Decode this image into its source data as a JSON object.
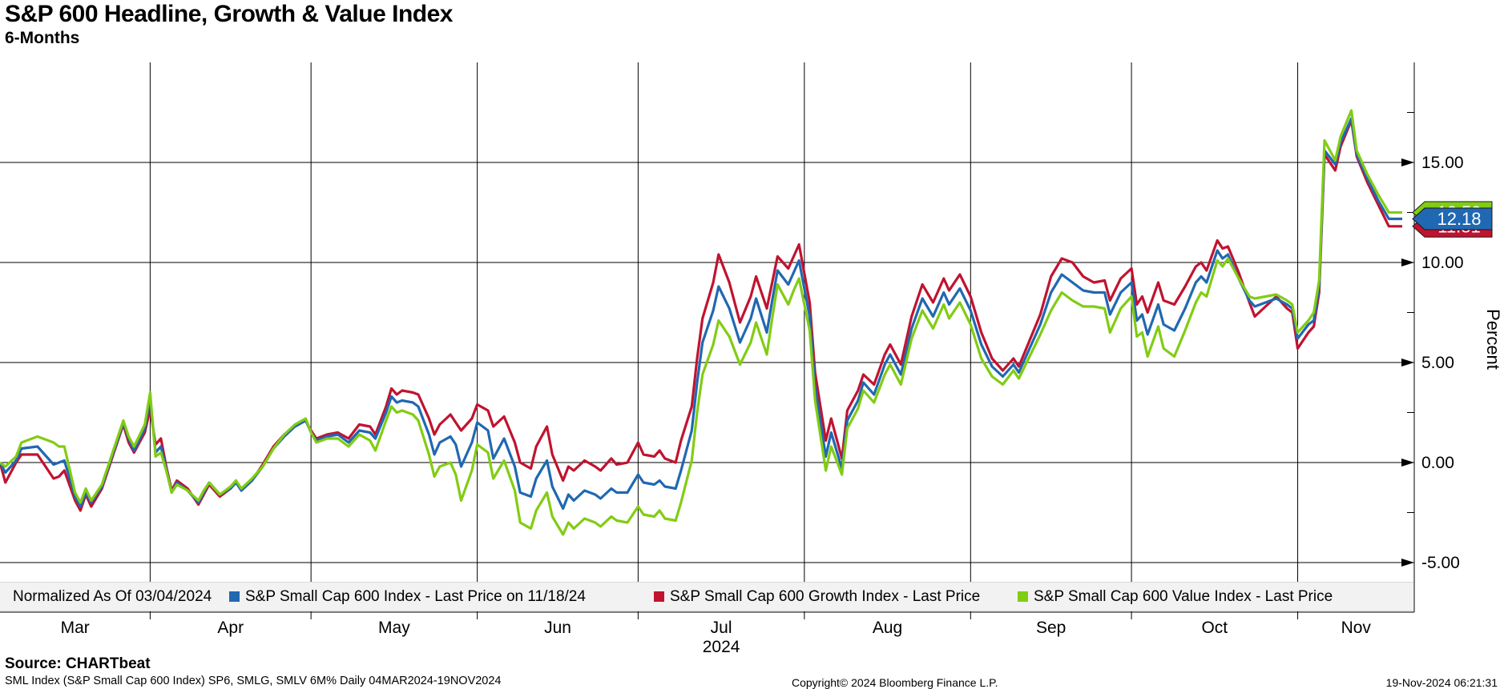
{
  "header": {
    "title": "S&P 600 Headline, Growth & Value Index",
    "subtitle": "6-Months"
  },
  "y_axis": {
    "unit_label": "Percent",
    "major_ticks": [
      {
        "label": "15.00",
        "value": 15
      },
      {
        "label": "10.00",
        "value": 10
      },
      {
        "label": "5.00",
        "value": 5
      },
      {
        "label": "0.00",
        "value": 0
      },
      {
        "label": "-5.00",
        "value": -5
      }
    ],
    "minor_tick_values": [
      17.5,
      12.5,
      7.5,
      2.5,
      -2.5
    ]
  },
  "x_axis": {
    "month_labels": [
      "Mar",
      "Apr",
      "May",
      "Jun",
      "Jul",
      "Aug",
      "Sep",
      "Oct",
      "Nov"
    ],
    "year_label": "2024",
    "year_under_month": "Jul"
  },
  "legend": {
    "note": "Normalized As Of 03/04/2024",
    "items": [
      {
        "label": "S&P Small Cap 600 Index - Last Price on 11/18/24",
        "color": "#2068b2"
      },
      {
        "label": "S&P Small Cap 600 Growth Index - Last Price",
        "color": "#c01330"
      },
      {
        "label": "S&P Small Cap 600 Value Index - Last Price",
        "color": "#82cc14"
      }
    ]
  },
  "footer": {
    "source": "Source: CHARTbeat",
    "description": "SML Index (S&P Small Cap 600 Index) SP6, SMLG, SMLV 6M%  Daily 04MAR2024-19NOV2024",
    "copyright": "Copyright© 2024 Bloomberg Finance L.P.",
    "timestamp": "19-Nov-2024 06:21:31"
  },
  "chart_data": {
    "type": "line",
    "title": "S&P 600 Headline, Growth & Value Index, 6-Months",
    "ylabel": "Percent",
    "ylim": [
      -7.5,
      20
    ],
    "x_start": "2024-03-04",
    "x_end": "2024-11-19",
    "grid": true,
    "legend_position": "bottom",
    "dates": [
      "03-04",
      "03-05",
      "03-07",
      "03-08",
      "03-11",
      "03-12",
      "03-14",
      "03-15",
      "03-16",
      "03-18",
      "03-19",
      "03-20",
      "03-21",
      "03-23",
      "03-25",
      "03-27",
      "03-28",
      "03-29",
      "03-31",
      "04-01",
      "04-02",
      "04-03",
      "04-04",
      "04-05",
      "04-06",
      "04-08",
      "04-10",
      "04-11",
      "04-12",
      "04-14",
      "04-16",
      "04-17",
      "04-18",
      "04-20",
      "04-22",
      "04-24",
      "04-26",
      "04-28",
      "04-30",
      "05-01",
      "05-02",
      "05-04",
      "05-06",
      "05-08",
      "05-10",
      "05-12",
      "05-13",
      "05-15",
      "05-16",
      "05-17",
      "05-18",
      "05-20",
      "05-21",
      "05-23",
      "05-24",
      "05-25",
      "05-27",
      "05-28",
      "05-29",
      "05-31",
      "06-01",
      "06-03",
      "06-04",
      "06-06",
      "06-08",
      "06-09",
      "06-11",
      "06-12",
      "06-14",
      "06-15",
      "06-17",
      "06-18",
      "06-19",
      "06-21",
      "06-23",
      "06-24",
      "06-26",
      "06-27",
      "06-29",
      "07-01",
      "07-02",
      "07-04",
      "07-05",
      "07-06",
      "07-08",
      "07-09",
      "07-11",
      "07-12",
      "07-13",
      "07-15",
      "07-16",
      "07-18",
      "07-20",
      "07-22",
      "07-23",
      "07-25",
      "07-26",
      "07-27",
      "07-29",
      "07-30",
      "07-31",
      "08-02",
      "08-03",
      "08-05",
      "08-06",
      "08-08",
      "08-09",
      "08-11",
      "08-12",
      "08-14",
      "08-16",
      "08-17",
      "08-19",
      "08-21",
      "08-23",
      "08-25",
      "08-27",
      "08-28",
      "08-30",
      "09-01",
      "09-03",
      "09-05",
      "09-07",
      "09-09",
      "09-10",
      "09-12",
      "09-14",
      "09-16",
      "09-18",
      "09-20",
      "09-22",
      "09-24",
      "09-26",
      "09-27",
      "09-29",
      "10-01",
      "10-02",
      "10-03",
      "10-04",
      "10-06",
      "10-07",
      "10-09",
      "10-11",
      "10-13",
      "10-14",
      "10-15",
      "10-17",
      "10-18",
      "10-19",
      "10-21",
      "10-23",
      "10-24",
      "10-26",
      "10-28",
      "10-30",
      "10-31",
      "11-01",
      "11-03",
      "11-04",
      "11-05",
      "11-06",
      "11-08",
      "11-09",
      "11-11",
      "11-12",
      "11-14",
      "11-16",
      "11-18"
    ],
    "series": [
      {
        "name": "S&P Small Cap 600 Index",
        "color": "#2068b2",
        "last_label": "12.18",
        "values": [
          0.0,
          -0.5,
          0.1,
          0.7,
          0.8,
          0.5,
          -0.1,
          0.0,
          0.1,
          -1.7,
          -2.2,
          -1.5,
          -2.0,
          -1.2,
          0.4,
          2.0,
          1.2,
          0.6,
          1.7,
          3.2,
          0.5,
          0.8,
          -0.3,
          -1.5,
          -1.0,
          -1.4,
          -2.0,
          -1.5,
          -1.0,
          -1.6,
          -1.3,
          -1.0,
          -1.4,
          -0.9,
          -0.2,
          0.7,
          1.3,
          1.8,
          2.1,
          1.5,
          1.1,
          1.3,
          1.4,
          1.0,
          1.6,
          1.5,
          1.2,
          2.5,
          3.3,
          3.0,
          3.1,
          3.0,
          2.8,
          1.4,
          0.4,
          1.0,
          1.3,
          0.9,
          -0.2,
          1.0,
          2.0,
          1.6,
          0.2,
          1.2,
          -0.2,
          -1.5,
          -1.7,
          -0.8,
          0.1,
          -1.2,
          -2.3,
          -1.6,
          -1.9,
          -1.4,
          -1.6,
          -1.8,
          -1.3,
          -1.5,
          -1.5,
          -0.6,
          -1.0,
          -1.1,
          -0.9,
          -1.2,
          -1.3,
          -0.4,
          1.6,
          4.0,
          6.0,
          7.6,
          8.8,
          7.7,
          6.0,
          7.2,
          8.2,
          6.5,
          8.1,
          9.6,
          8.9,
          9.5,
          10.1,
          7.3,
          3.8,
          0.3,
          1.5,
          -0.3,
          2.1,
          3.1,
          4.0,
          3.4,
          4.9,
          5.4,
          4.4,
          6.7,
          8.2,
          7.3,
          8.5,
          7.9,
          8.7,
          7.6,
          5.9,
          4.8,
          4.3,
          4.9,
          4.5,
          5.7,
          6.9,
          8.5,
          9.4,
          9.0,
          8.6,
          8.5,
          8.5,
          7.4,
          8.5,
          9.0,
          7.1,
          7.4,
          6.4,
          7.9,
          6.9,
          6.6,
          7.7,
          9.0,
          9.3,
          9.0,
          10.6,
          10.2,
          10.4,
          9.2,
          8.1,
          7.8,
          8.0,
          8.2,
          7.9,
          7.7,
          6.2,
          6.9,
          7.1,
          8.8,
          15.6,
          14.9,
          16.0,
          17.2,
          15.4,
          14.2,
          13.1,
          12.18
        ]
      },
      {
        "name": "S&P Small Cap 600 Growth Index",
        "color": "#c01330",
        "last_label": "11.81",
        "values": [
          0.0,
          -1.0,
          0.0,
          0.4,
          0.4,
          0.0,
          -0.8,
          -0.7,
          -0.4,
          -1.9,
          -2.4,
          -1.6,
          -2.2,
          -1.3,
          0.3,
          1.9,
          1.0,
          0.5,
          1.5,
          2.7,
          0.9,
          1.2,
          -0.2,
          -1.4,
          -0.9,
          -1.3,
          -2.1,
          -1.6,
          -1.1,
          -1.7,
          -1.3,
          -0.9,
          -1.4,
          -0.9,
          -0.1,
          0.8,
          1.4,
          1.8,
          2.1,
          1.6,
          1.2,
          1.4,
          1.5,
          1.2,
          1.9,
          1.8,
          1.4,
          2.8,
          3.7,
          3.4,
          3.6,
          3.5,
          3.4,
          2.2,
          1.4,
          1.9,
          2.4,
          2.0,
          1.6,
          2.2,
          2.9,
          2.6,
          1.8,
          2.3,
          1.0,
          0.0,
          -0.3,
          0.8,
          1.8,
          0.4,
          -0.9,
          -0.2,
          -0.4,
          0.1,
          -0.2,
          -0.4,
          0.2,
          -0.1,
          0.0,
          1.0,
          0.4,
          0.3,
          0.6,
          0.2,
          0.0,
          1.1,
          2.8,
          5.2,
          7.2,
          9.0,
          10.4,
          9.0,
          7.0,
          8.3,
          9.3,
          7.7,
          9.0,
          10.3,
          9.7,
          10.3,
          10.9,
          8.0,
          4.5,
          1.1,
          2.2,
          0.2,
          2.6,
          3.6,
          4.4,
          3.9,
          5.4,
          5.9,
          4.9,
          7.3,
          8.9,
          8.0,
          9.2,
          8.6,
          9.4,
          8.3,
          6.5,
          5.2,
          4.6,
          5.2,
          4.8,
          6.1,
          7.4,
          9.3,
          10.2,
          10.0,
          9.3,
          9.0,
          9.1,
          8.1,
          9.2,
          9.7,
          7.9,
          8.3,
          7.5,
          9.0,
          8.1,
          7.9,
          8.8,
          9.8,
          10.0,
          9.6,
          11.1,
          10.7,
          10.8,
          9.5,
          8.0,
          7.3,
          7.8,
          8.3,
          7.7,
          7.5,
          5.7,
          6.5,
          6.8,
          8.5,
          15.4,
          14.6,
          15.8,
          17.1,
          15.3,
          14.0,
          12.9,
          11.81
        ]
      },
      {
        "name": "S&P Small Cap 600 Value Index",
        "color": "#82cc14",
        "last_label": "12.50",
        "values": [
          0.0,
          -0.2,
          0.3,
          1.0,
          1.3,
          1.2,
          1.0,
          0.8,
          0.8,
          -1.5,
          -2.0,
          -1.3,
          -1.9,
          -1.1,
          0.5,
          2.1,
          1.3,
          0.8,
          1.9,
          3.5,
          0.3,
          0.5,
          -0.4,
          -1.5,
          -1.1,
          -1.4,
          -1.9,
          -1.4,
          -1.0,
          -1.6,
          -1.2,
          -0.9,
          -1.3,
          -0.8,
          -0.2,
          0.7,
          1.4,
          1.9,
          2.2,
          1.5,
          1.0,
          1.2,
          1.2,
          0.8,
          1.4,
          1.1,
          0.6,
          2.1,
          2.8,
          2.5,
          2.6,
          2.4,
          2.1,
          0.4,
          -0.7,
          -0.2,
          0.0,
          -0.6,
          -1.9,
          -0.4,
          0.9,
          0.5,
          -0.8,
          0.1,
          -1.4,
          -3.0,
          -3.3,
          -2.4,
          -1.5,
          -2.7,
          -3.6,
          -3.0,
          -3.3,
          -2.8,
          -3.0,
          -3.2,
          -2.7,
          -2.9,
          -3.0,
          -2.2,
          -2.6,
          -2.7,
          -2.4,
          -2.8,
          -2.9,
          -2.0,
          0.1,
          2.5,
          4.4,
          5.9,
          7.1,
          6.3,
          4.9,
          6.0,
          7.0,
          5.4,
          7.2,
          8.9,
          7.9,
          8.6,
          9.2,
          6.6,
          3.1,
          -0.4,
          0.8,
          -0.6,
          1.7,
          2.7,
          3.6,
          3.0,
          4.4,
          4.9,
          3.9,
          6.2,
          7.6,
          6.7,
          7.9,
          7.2,
          8.0,
          6.9,
          5.2,
          4.3,
          3.9,
          4.6,
          4.2,
          5.3,
          6.4,
          7.6,
          8.5,
          8.1,
          7.8,
          7.8,
          7.7,
          6.5,
          7.7,
          8.3,
          6.3,
          6.5,
          5.3,
          6.8,
          5.7,
          5.3,
          6.6,
          8.0,
          8.5,
          8.3,
          10.1,
          9.8,
          10.2,
          9.2,
          8.3,
          8.2,
          8.3,
          8.4,
          8.1,
          7.9,
          6.5,
          7.1,
          7.5,
          9.1,
          16.1,
          15.1,
          16.3,
          17.6,
          15.6,
          14.4,
          13.4,
          12.5
        ]
      }
    ]
  }
}
